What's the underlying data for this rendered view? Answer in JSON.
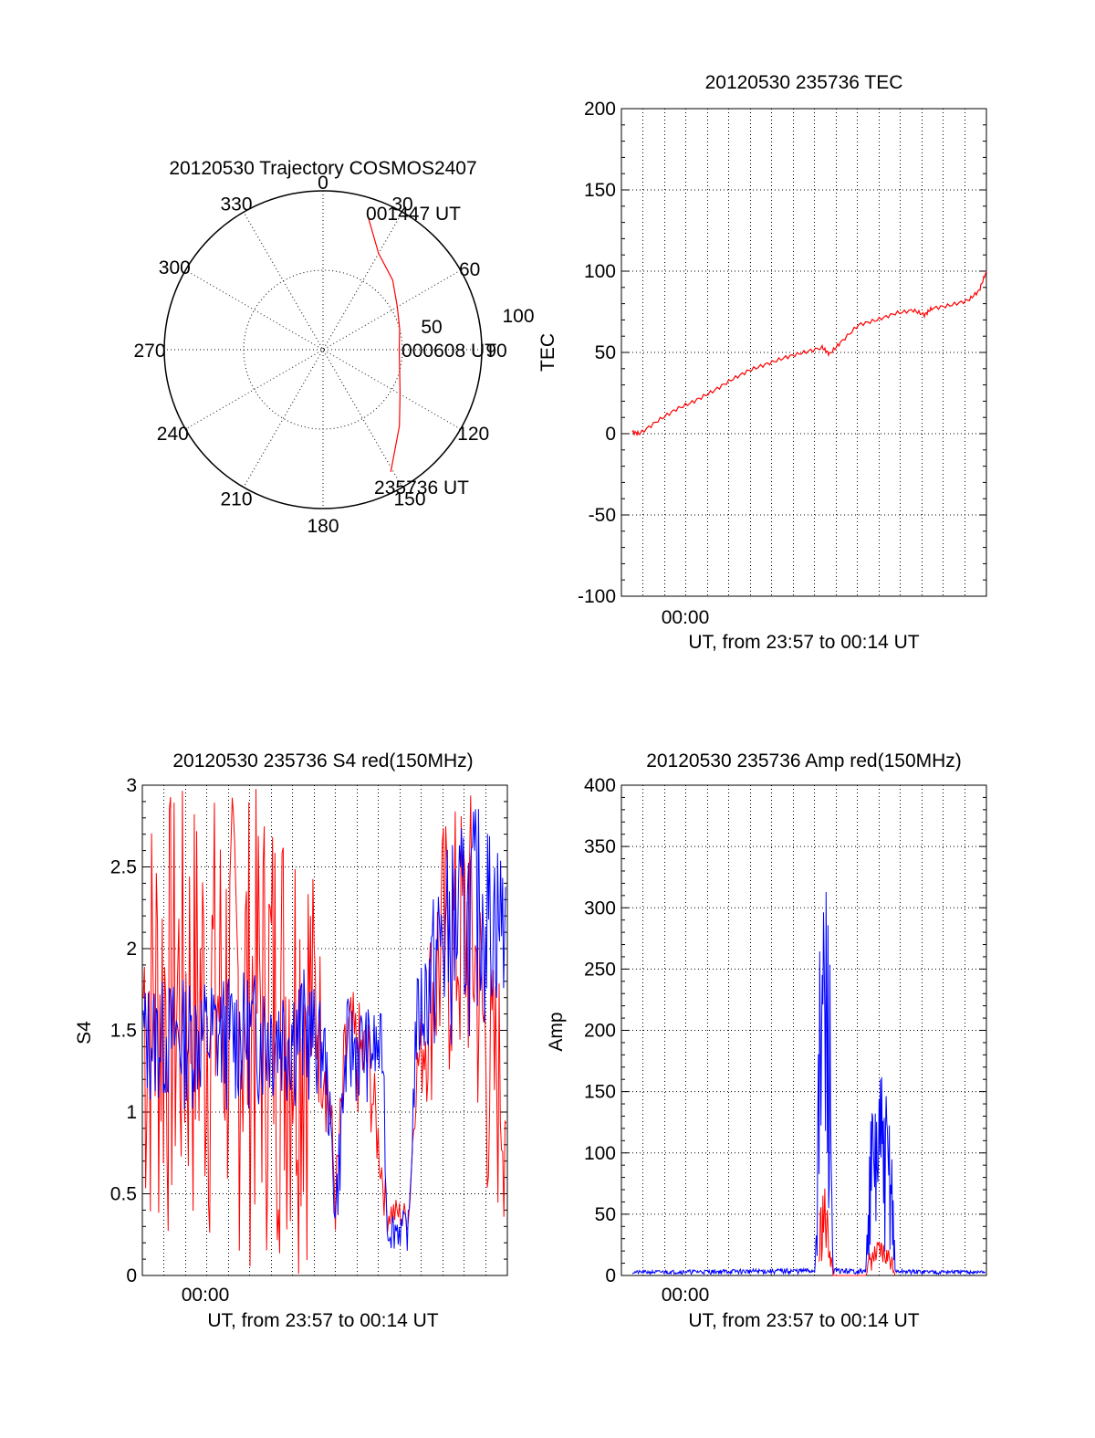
{
  "chart_data": [
    {
      "id": "trajectory",
      "type": "polar",
      "title": "20120530 Trajectory COSMOS2407",
      "azimuth_labels": [
        "0",
        "30",
        "60",
        "90",
        "120",
        "150",
        "180",
        "210",
        "240",
        "270",
        "300",
        "330"
      ],
      "radial_labels": [
        "50",
        "100"
      ],
      "rlim": [
        0,
        100
      ],
      "grid": true,
      "colors": {
        "track": "#ff0000"
      },
      "track": [
        {
          "az": 18,
          "r": 90
        },
        {
          "az": 30,
          "r": 70
        },
        {
          "az": 45,
          "r": 62
        },
        {
          "az": 60,
          "r": 54
        },
        {
          "az": 75,
          "r": 50
        },
        {
          "az": 90,
          "r": 48
        },
        {
          "az": 105,
          "r": 50
        },
        {
          "az": 120,
          "r": 56
        },
        {
          "az": 135,
          "r": 68
        },
        {
          "az": 151,
          "r": 88
        }
      ],
      "annotations": [
        {
          "text": "001447 UT",
          "az": 24,
          "r": 88
        },
        {
          "text": "000608 UT",
          "az": 90,
          "r": 48
        },
        {
          "text": "235736 UT",
          "az": 153,
          "r": 94
        }
      ]
    },
    {
      "id": "tec",
      "type": "line",
      "title": "20120530 235736 TEC",
      "ylabel": "TEC",
      "xlabel": "UT, from 23:57 to 00:14 UT",
      "xtick_label": "00:00",
      "ylim": [
        -100,
        200
      ],
      "yticks": [
        "-100",
        "-50",
        "0",
        "50",
        "100",
        "150",
        "200"
      ],
      "xlim": [
        0,
        1
      ],
      "grid": true,
      "colors": {
        "line": "#ff0000"
      },
      "x": [
        0.03,
        0.05,
        0.1,
        0.15,
        0.2,
        0.25,
        0.3,
        0.35,
        0.4,
        0.45,
        0.5,
        0.55,
        0.57,
        0.6,
        0.65,
        0.7,
        0.75,
        0.8,
        0.83,
        0.85,
        0.9,
        0.95,
        0.98,
        1.0
      ],
      "values": [
        1,
        0,
        8,
        15,
        20,
        26,
        33,
        39,
        43,
        47,
        50,
        53,
        49,
        56,
        67,
        70,
        74,
        76,
        73,
        77,
        79,
        82,
        88,
        100
      ]
    },
    {
      "id": "s4",
      "type": "line",
      "title": "20120530 235736 S4 red(150MHz)",
      "ylabel": "S4",
      "xlabel": "UT, from 23:57 to 00:14 UT",
      "xtick_label": "00:00",
      "ylim": [
        0,
        3
      ],
      "yticks": [
        "0",
        "0.5",
        "1",
        "1.5",
        "2",
        "2.5",
        "3"
      ],
      "xlim": [
        0,
        1
      ],
      "grid": true,
      "colors": {
        "red": "#ff0000",
        "blue": "#0000ff"
      },
      "red_envelope": [
        {
          "x": 0.0,
          "lo": 0.0,
          "hi": 3.0
        },
        {
          "x": 0.45,
          "lo": 0.0,
          "hi": 3.0
        },
        {
          "x": 0.48,
          "lo": 0.9,
          "hi": 2.2
        },
        {
          "x": 0.5,
          "lo": 0.9,
          "hi": 1.8
        },
        {
          "x": 0.53,
          "lo": 0.15,
          "hi": 0.7
        },
        {
          "x": 0.56,
          "lo": 0.9,
          "hi": 1.8
        },
        {
          "x": 0.62,
          "lo": 0.9,
          "hi": 1.6
        },
        {
          "x": 0.67,
          "lo": 0.25,
          "hi": 0.5
        },
        {
          "x": 0.73,
          "lo": 0.25,
          "hi": 0.45
        },
        {
          "x": 0.75,
          "lo": 1.0,
          "hi": 1.4
        },
        {
          "x": 0.82,
          "lo": 1.0,
          "hi": 2.8
        },
        {
          "x": 0.9,
          "lo": 1.0,
          "hi": 3.0
        },
        {
          "x": 0.95,
          "lo": 0.2,
          "hi": 2.0
        },
        {
          "x": 1.0,
          "lo": 0.2,
          "hi": 1.9
        }
      ],
      "blue_envelope": [
        {
          "x": 0.0,
          "lo": 1.0,
          "hi": 1.8
        },
        {
          "x": 0.45,
          "lo": 1.0,
          "hi": 1.9
        },
        {
          "x": 0.5,
          "lo": 1.1,
          "hi": 1.6
        },
        {
          "x": 0.53,
          "lo": 0.15,
          "hi": 0.6
        },
        {
          "x": 0.56,
          "lo": 1.0,
          "hi": 1.7
        },
        {
          "x": 0.66,
          "lo": 1.1,
          "hi": 1.6
        },
        {
          "x": 0.67,
          "lo": 0.15,
          "hi": 0.4
        },
        {
          "x": 0.73,
          "lo": 0.15,
          "hi": 0.4
        },
        {
          "x": 0.75,
          "lo": 1.2,
          "hi": 1.8
        },
        {
          "x": 0.82,
          "lo": 1.3,
          "hi": 2.6
        },
        {
          "x": 0.92,
          "lo": 1.5,
          "hi": 2.9
        },
        {
          "x": 1.0,
          "lo": 1.6,
          "hi": 2.6
        }
      ]
    },
    {
      "id": "amp",
      "type": "line",
      "title": "20120530 235736 Amp red(150MHz)",
      "ylabel": "Amp",
      "xlabel": "UT, from 23:57 to 00:14 UT",
      "xtick_label": "00:00",
      "ylim": [
        0,
        400
      ],
      "yticks": [
        "0",
        "50",
        "100",
        "150",
        "200",
        "250",
        "300",
        "350",
        "400"
      ],
      "xlim": [
        0,
        1
      ],
      "grid": true,
      "colors": {
        "red": "#ff0000",
        "blue": "#0000ff"
      },
      "blue_envelope": [
        {
          "x": 0.03,
          "lo": 1,
          "hi": 4
        },
        {
          "x": 0.53,
          "lo": 1,
          "hi": 6
        },
        {
          "x": 0.545,
          "lo": 10,
          "hi": 300
        },
        {
          "x": 0.555,
          "lo": 20,
          "hi": 350
        },
        {
          "x": 0.57,
          "lo": 15,
          "hi": 310
        },
        {
          "x": 0.58,
          "lo": 1,
          "hi": 6
        },
        {
          "x": 0.67,
          "lo": 1,
          "hi": 5
        },
        {
          "x": 0.68,
          "lo": 10,
          "hi": 130
        },
        {
          "x": 0.71,
          "lo": 15,
          "hi": 170
        },
        {
          "x": 0.74,
          "lo": 10,
          "hi": 130
        },
        {
          "x": 0.75,
          "lo": 1,
          "hi": 5
        },
        {
          "x": 1.0,
          "lo": 1,
          "hi": 4
        }
      ],
      "red_envelope": [
        {
          "x": 0.54,
          "lo": 0,
          "hi": 0
        },
        {
          "x": 0.545,
          "lo": 5,
          "hi": 60
        },
        {
          "x": 0.555,
          "lo": 10,
          "hi": 80
        },
        {
          "x": 0.57,
          "lo": 5,
          "hi": 40
        },
        {
          "x": 0.58,
          "lo": 0,
          "hi": 0
        },
        {
          "x": 0.67,
          "lo": 0,
          "hi": 0
        },
        {
          "x": 0.68,
          "lo": 3,
          "hi": 20
        },
        {
          "x": 0.71,
          "lo": 5,
          "hi": 30
        },
        {
          "x": 0.74,
          "lo": 3,
          "hi": 20
        },
        {
          "x": 0.75,
          "lo": 0,
          "hi": 0
        }
      ]
    }
  ]
}
